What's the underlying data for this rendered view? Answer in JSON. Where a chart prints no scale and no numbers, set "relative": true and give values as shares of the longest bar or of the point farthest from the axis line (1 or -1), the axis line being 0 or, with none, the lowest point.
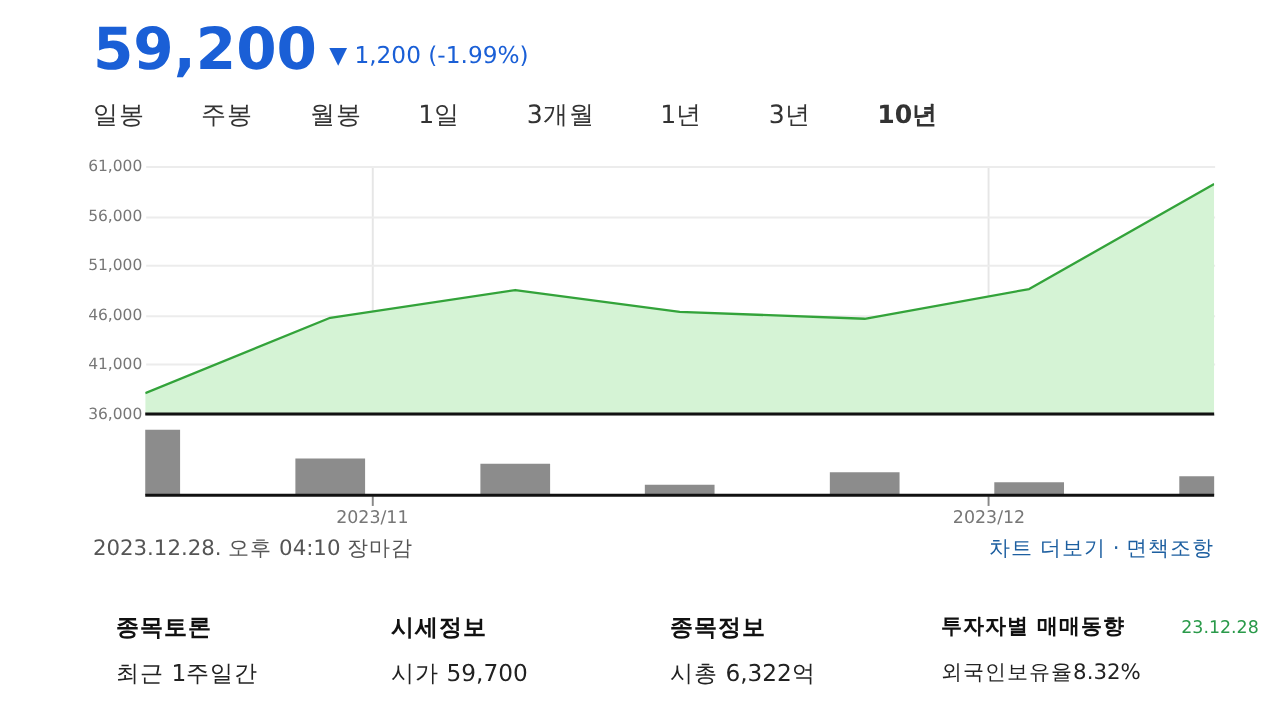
{
  "chart_data": [
    {
      "type": "other",
      "title": "59,200",
      "subtitle": "▼ 1,200 (-1.99%)",
      "annotations": [
        "일봉",
        "주봉",
        "월봉",
        "1일",
        "3개월",
        "1년",
        "3년",
        "10년"
      ]
    },
    {
      "type": "area",
      "x": [
        "2023-10-21",
        "2023-10-30",
        "2023-11-08",
        "2023-11-16",
        "2023-11-25",
        "2023-12-03",
        "2023-12-12"
      ],
      "series": [
        {
          "color": "#33a33a",
          "values": [
            38100,
            45700,
            48500,
            46300,
            45600,
            48600,
            59200
          ]
        }
      ],
      "xlim": [
        "2023-10-21",
        "2023-12-12"
      ],
      "xticks": [
        {
          "value": "2023-11",
          "label": null
        },
        {
          "value": "2023-12",
          "label": null
        }
      ],
      "ylim": [
        36000,
        61000
      ],
      "yticks": [
        {
          "value": 36000,
          "label": "36,000"
        },
        {
          "value": 41000,
          "label": "41,000"
        },
        {
          "value": 46000,
          "label": "46,000"
        },
        {
          "value": 51000,
          "label": "51,000"
        },
        {
          "value": 56000,
          "label": "56,000"
        },
        {
          "value": 61000,
          "label": "61,000"
        }
      ],
      "grid": true,
      "tick_labels": "y"
    },
    {
      "type": "bar",
      "relative": true,
      "x": [
        "2023-10-21",
        "2023-10-30",
        "2023-11-08",
        "2023-11-16",
        "2023-11-25",
        "2023-12-03",
        "2023-12-12"
      ],
      "series": [
        {
          "color": "#8c8c8c",
          "values": [
            1,
            0.56,
            0.48,
            0.16,
            0.35,
            0.2,
            0.29
          ]
        }
      ],
      "xlim": [
        "2023-10-21",
        "2023-12-12"
      ],
      "xticks": [
        {
          "value": "2023-11",
          "label": "2023/11"
        },
        {
          "value": "2023-12",
          "label": "2023/12"
        }
      ],
      "tick_labels": "x"
    },
    {
      "type": "other",
      "annotations": [
        "2023.12.28. 오후 04:10 장마감",
        "차트 더보기 · 면책조항",
        "종목토론",
        "최근 1주일간",
        "시세정보",
        "시가  59,700",
        "종목정보",
        "시총  6,322억",
        "투자자별 매매동향",
        "23.12.28",
        "외국인보유율8.32%"
      ]
    }
  ]
}
